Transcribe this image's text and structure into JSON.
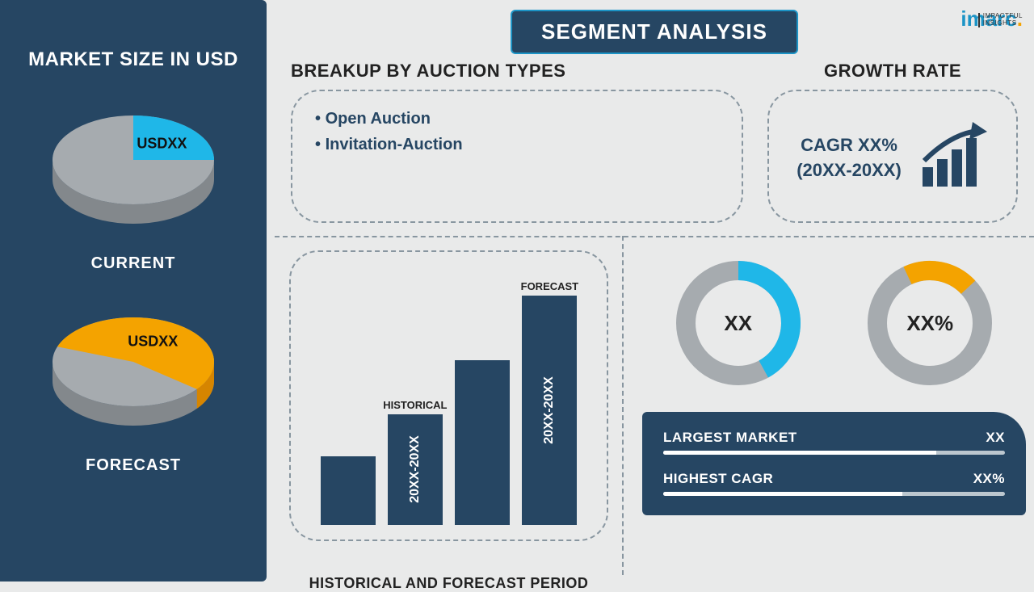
{
  "colors": {
    "primary": "#264663",
    "cyan": "#1fb7e8",
    "yellow": "#f4a300",
    "gray_pie": "#a6abaf",
    "gray_dark": "#6d737a",
    "gray_donut": "#a6abaf",
    "bg": "#e9eaea",
    "dash": "#8896a0"
  },
  "logo": {
    "text": "imarc",
    "sub1": "IMPACTFUL",
    "sub2": "INSIGHTS"
  },
  "sidebar": {
    "title": "MARKET SIZE IN USD",
    "pie1": {
      "label": "CURRENT",
      "slice_label": "USDXX",
      "slice_color": "#1fb7e8",
      "rest_color": "#a6abaf",
      "slice_pct": 25,
      "slice_start_deg": 270
    },
    "pie2": {
      "label": "FORECAST",
      "slice_label": "USDXX",
      "slice_color": "#f4a300",
      "rest_color": "#a6abaf",
      "slice_pct": 55,
      "slice_start_deg": 200
    }
  },
  "title": "SEGMENT ANALYSIS",
  "breakup": {
    "title": "BREAKUP BY AUCTION TYPES",
    "items": [
      "Open Auction",
      "Invitation-Auction"
    ]
  },
  "growth": {
    "title": "GROWTH RATE",
    "line1": "CAGR XX%",
    "line2": "(20XX-20XX)"
  },
  "histfc": {
    "title": "HISTORICAL AND FORECAST PERIOD",
    "bars": [
      {
        "height_pct": 28,
        "top_label": "",
        "inner_label": ""
      },
      {
        "height_pct": 45,
        "top_label": "HISTORICAL",
        "inner_label": "20XX-20XX"
      },
      {
        "height_pct": 67,
        "top_label": "",
        "inner_label": ""
      },
      {
        "height_pct": 93,
        "top_label": "FORECAST",
        "inner_label": "20XX-20XX"
      }
    ],
    "bar_color": "#264663"
  },
  "donuts": [
    {
      "center": "XX",
      "pct": 42,
      "start_deg": 0,
      "fg": "#1fb7e8",
      "bg": "#a6abaf",
      "thickness": 24
    },
    {
      "center": "XX%",
      "pct": 20,
      "start_deg": -25,
      "fg": "#f4a300",
      "bg": "#a6abaf",
      "thickness": 24
    }
  ],
  "market_box": {
    "rows": [
      {
        "label": "LARGEST MARKET",
        "value": "XX",
        "progress_pct": 80
      },
      {
        "label": "HIGHEST CAGR",
        "value": "XX%",
        "progress_pct": 70
      }
    ]
  }
}
